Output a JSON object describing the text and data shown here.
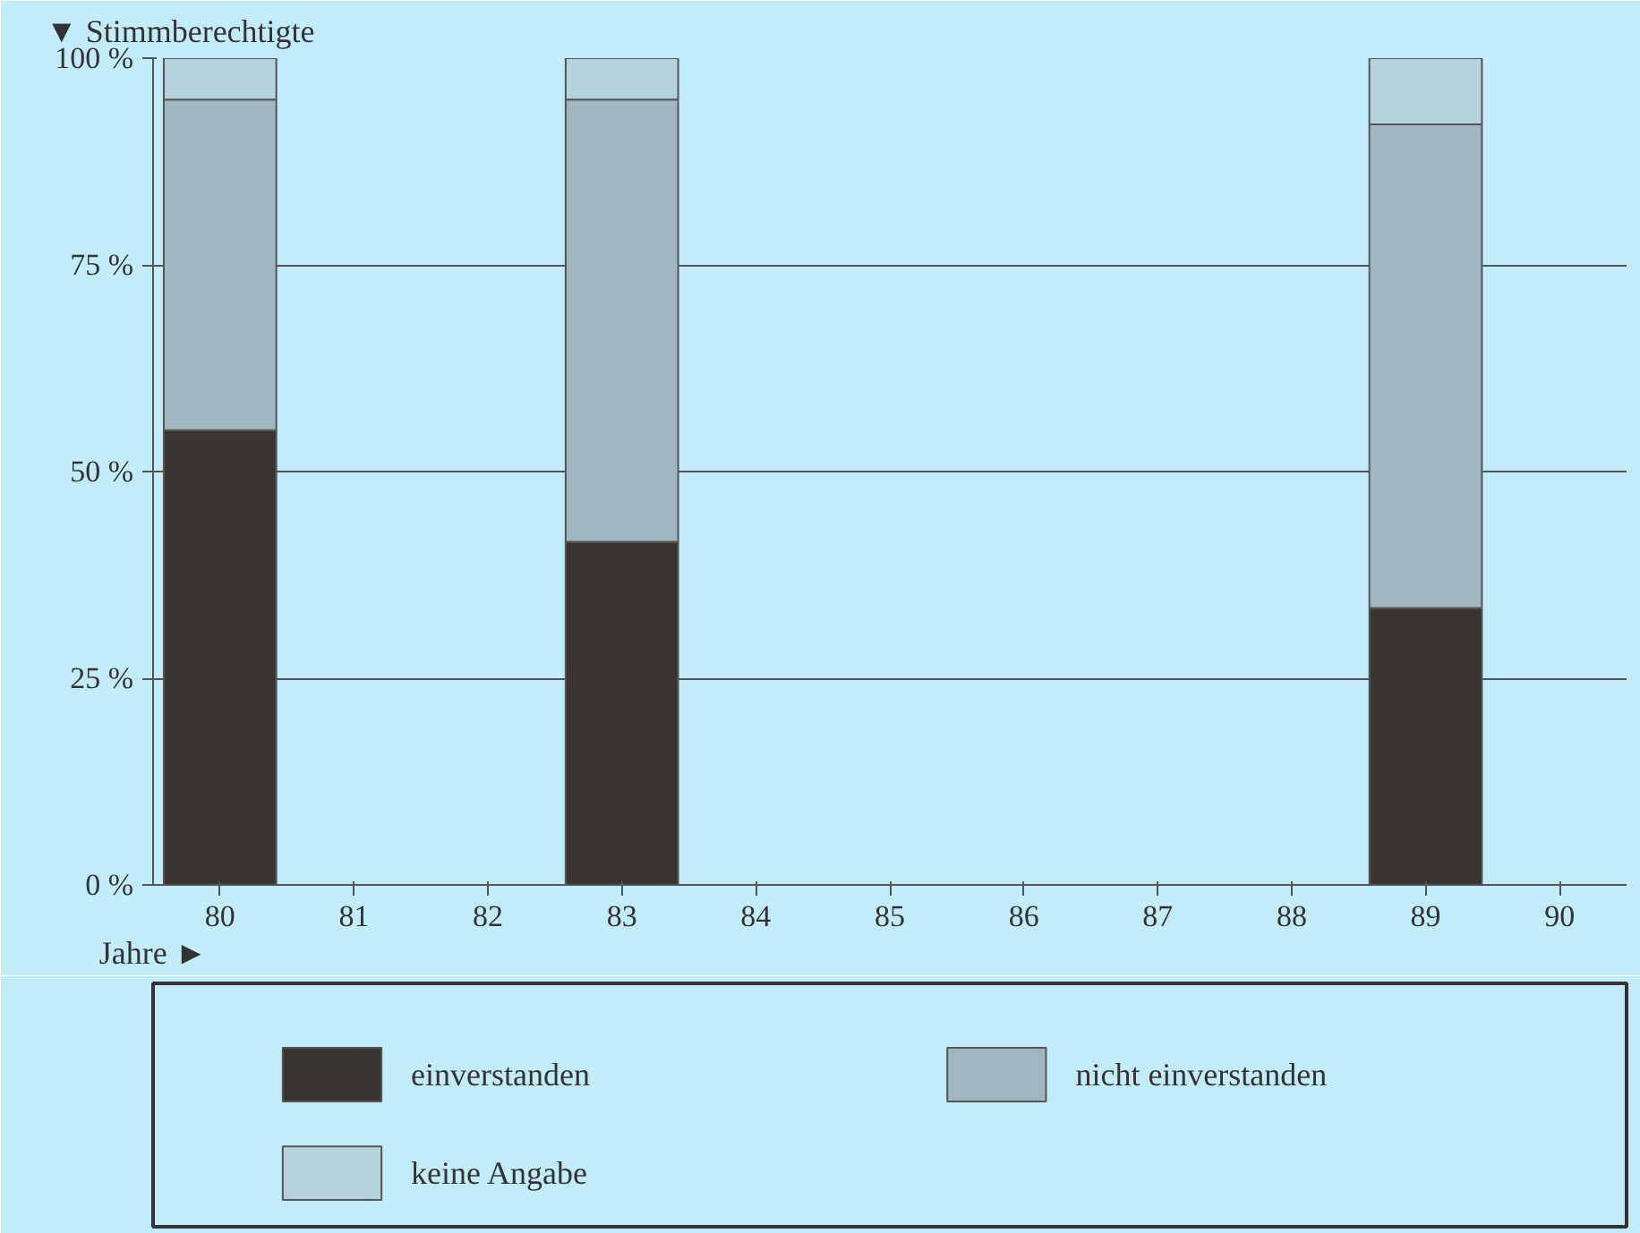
{
  "chart_data": {
    "type": "bar",
    "stacked": true,
    "xlabel": "Jahre ►",
    "ylabel": "▼ Stimmberechtigte",
    "x": [
      80,
      83,
      89
    ],
    "series": [
      {
        "name": "einverstanden",
        "color": "#3a3530",
        "values": [
          55,
          41.5,
          33.5
        ]
      },
      {
        "name": "nicht einverstanden",
        "color": "#9fb8c0",
        "values": [
          40,
          53.5,
          58.5
        ]
      },
      {
        "name": "keine Angabe",
        "color": "#b5d3dc",
        "values": [
          5,
          5,
          8
        ]
      }
    ],
    "xlim": [
      79.5,
      90.5
    ],
    "ylim": [
      0,
      100
    ],
    "xticks": [
      80,
      81,
      82,
      83,
      84,
      85,
      86,
      87,
      88,
      89,
      90
    ],
    "yticks": [
      {
        "value": 0,
        "label": "0 %"
      },
      {
        "value": 25,
        "label": "25 %"
      },
      {
        "value": 50,
        "label": "50 %"
      },
      {
        "value": 75,
        "label": "75 %"
      },
      {
        "value": 100,
        "label": "100 %"
      }
    ],
    "grid": "y",
    "legend": "bottom"
  }
}
